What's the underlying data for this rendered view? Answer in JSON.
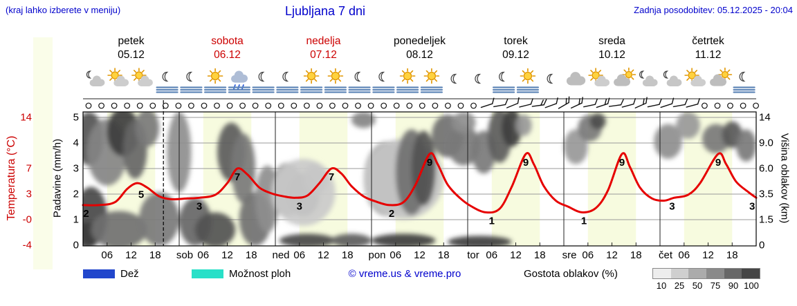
{
  "header": {
    "note": "(kraj lahko izberete v meniju)",
    "title": "Ljubljana 7 dni",
    "updated": "Zadnja posodobitev: 05.12.2025 - 20:04"
  },
  "days": [
    {
      "name": "petek",
      "date": "05.12",
      "color": "#000000"
    },
    {
      "name": "sobota",
      "date": "06.12",
      "color": "#cc0000"
    },
    {
      "name": "nedelja",
      "date": "07.12",
      "color": "#cc0000"
    },
    {
      "name": "ponedeljek",
      "date": "08.12",
      "color": "#000000"
    },
    {
      "name": "torek",
      "date": "09.12",
      "color": "#000000"
    },
    {
      "name": "sreda",
      "date": "10.12",
      "color": "#000000"
    },
    {
      "name": "četrtek",
      "date": "11.12",
      "color": "#000000"
    }
  ],
  "axes": {
    "temp_label": "Temperatura (°C)",
    "temp_ticks": [
      "14",
      "7",
      "3",
      "-0",
      "-4"
    ],
    "precip_label": "Padavine (mm/h)",
    "precip_ticks": [
      "5",
      "4",
      "3",
      "2",
      "1",
      "0"
    ],
    "cloud_label": "Višina oblakov (km)",
    "cloud_ticks": [
      "14",
      "9.0",
      "6.0",
      "3.5",
      "1.5",
      "0"
    ],
    "x_hour_labels": [
      "06",
      "12",
      "18"
    ],
    "x_day_labels": [
      "sob",
      "ned",
      "pon",
      "tor",
      "sre",
      "čet"
    ]
  },
  "legend": {
    "rain": "Dež",
    "showers": "Možnost ploh",
    "credit": "© vreme.us & vreme.pro",
    "cloud_density": "Gostota oblakov (%)",
    "density_ticks": [
      "10",
      "25",
      "50",
      "75",
      "90",
      "100"
    ],
    "density_colors": [
      "#ededed",
      "#cfcfcf",
      "#ababab",
      "#8a8a8a",
      "#676767",
      "#454545"
    ],
    "rain_color": "#2247cc",
    "showers_color": "#28e0c8"
  },
  "chart_data": {
    "type": "line",
    "title": "Ljubljana 7 dni",
    "x_unit": "hours from 05.12 00:00, 7 days total (0–168)",
    "ylabel_left": "Temperatura (°C) / Padavine (mm/h)",
    "ylabel_right": "Višina oblakov (km)",
    "ylim_temp": [
      -4,
      14
    ],
    "now_h": 20.07,
    "colors": {
      "band": "#f7fbdf",
      "curve": "#e60000"
    },
    "temperature": [
      [
        0,
        2
      ],
      [
        4,
        2
      ],
      [
        8,
        2.4
      ],
      [
        11,
        4.2
      ],
      [
        13.5,
        5
      ],
      [
        16,
        4.4
      ],
      [
        19,
        3.2
      ],
      [
        22,
        2.8
      ],
      [
        26,
        2.9
      ],
      [
        29,
        3
      ],
      [
        33,
        3.4
      ],
      [
        36,
        5
      ],
      [
        38.5,
        7
      ],
      [
        41,
        6.2
      ],
      [
        44,
        4.4
      ],
      [
        47,
        3.6
      ],
      [
        50,
        3.2
      ],
      [
        53,
        3
      ],
      [
        56,
        3.3
      ],
      [
        59,
        5
      ],
      [
        62,
        7
      ],
      [
        64.5,
        6.3
      ],
      [
        67,
        4.6
      ],
      [
        70,
        3.2
      ],
      [
        73,
        2.5
      ],
      [
        76.5,
        2
      ],
      [
        80,
        2.4
      ],
      [
        83,
        4.8
      ],
      [
        86.5,
        9
      ],
      [
        88.5,
        7.6
      ],
      [
        91,
        4.8
      ],
      [
        94,
        3
      ],
      [
        97,
        1.8
      ],
      [
        100.5,
        1
      ],
      [
        104,
        1.5
      ],
      [
        107,
        4.5
      ],
      [
        110.5,
        9
      ],
      [
        112.5,
        7.6
      ],
      [
        115,
        4.6
      ],
      [
        118,
        2.6
      ],
      [
        121,
        1.8
      ],
      [
        124.5,
        1
      ],
      [
        128,
        1.6
      ],
      [
        131,
        4
      ],
      [
        134.5,
        9
      ],
      [
        136.5,
        7.2
      ],
      [
        139,
        4.4
      ],
      [
        142,
        2.9
      ],
      [
        145,
        2.6
      ],
      [
        147.5,
        3
      ],
      [
        151,
        3.4
      ],
      [
        154,
        5
      ],
      [
        158.5,
        9
      ],
      [
        160.5,
        7.6
      ],
      [
        163,
        5.2
      ],
      [
        166,
        3.8
      ],
      [
        168,
        3
      ]
    ],
    "temp_labels": [
      [
        0.8,
        2,
        "2"
      ],
      [
        14.5,
        4.6,
        "5"
      ],
      [
        29,
        3,
        "3"
      ],
      [
        38.5,
        7,
        "7"
      ],
      [
        54,
        3,
        "3"
      ],
      [
        62,
        7,
        "7"
      ],
      [
        77,
        2,
        "2"
      ],
      [
        86.5,
        9,
        "9"
      ],
      [
        102,
        1,
        "1"
      ],
      [
        110.5,
        9,
        "9"
      ],
      [
        125,
        1,
        "1"
      ],
      [
        134.5,
        9,
        "9"
      ],
      [
        147,
        3,
        "3"
      ],
      [
        158.5,
        9,
        "9"
      ],
      [
        167,
        3,
        "3"
      ]
    ],
    "clouds": [
      {
        "h": 1.5,
        "f": 0.2,
        "rh": 3.5,
        "rf": 0.2,
        "d": 0.75
      },
      {
        "h": 6,
        "f": 0.3,
        "rh": 5,
        "rf": 0.25,
        "d": 0.5
      },
      {
        "h": 10,
        "f": 0.15,
        "rh": 4,
        "rf": 0.18,
        "d": 0.85
      },
      {
        "h": 13,
        "f": 0.28,
        "rh": 3,
        "rf": 0.22,
        "d": 0.65
      },
      {
        "h": 16,
        "f": 0.12,
        "rh": 3,
        "rf": 0.14,
        "d": 0.55
      },
      {
        "h": 2,
        "f": 0.78,
        "rh": 4,
        "rf": 0.22,
        "d": 0.8
      },
      {
        "h": 1,
        "f": 0.92,
        "rh": 3,
        "rf": 0.1,
        "d": 0.85
      },
      {
        "h": 9,
        "f": 0.88,
        "rh": 7,
        "rf": 0.14,
        "d": 0.6
      },
      {
        "h": 19,
        "f": 0.8,
        "rh": 5,
        "rf": 0.2,
        "d": 0.55
      },
      {
        "h": 24,
        "f": 0.3,
        "rh": 3,
        "rf": 0.3,
        "d": 0.45
      },
      {
        "h": 28,
        "f": 0.82,
        "rh": 4,
        "rf": 0.18,
        "d": 0.65
      },
      {
        "h": 33,
        "f": 0.88,
        "rh": 5,
        "rf": 0.13,
        "d": 0.75
      },
      {
        "h": 37,
        "f": 0.3,
        "rh": 3.5,
        "rf": 0.22,
        "d": 0.7
      },
      {
        "h": 40,
        "f": 0.42,
        "rh": 3,
        "rf": 0.26,
        "d": 0.55
      },
      {
        "h": 43,
        "f": 0.8,
        "rh": 4,
        "rf": 0.2,
        "d": 0.6
      },
      {
        "h": 46,
        "f": 0.65,
        "rh": 3,
        "rf": 0.25,
        "d": 0.45
      },
      {
        "h": 51,
        "f": 0.58,
        "rh": 4,
        "rf": 0.2,
        "d": 0.45
      },
      {
        "h": 55,
        "f": 0.62,
        "rh": 4,
        "rf": 0.16,
        "d": 0.6
      },
      {
        "h": 58,
        "f": 0.5,
        "rh": 3,
        "rf": 0.12,
        "d": 0.35
      },
      {
        "h": 55,
        "f": 0.6,
        "rh": 8,
        "rf": 0.25,
        "d": 0.15
      },
      {
        "h": 56,
        "f": 0.96,
        "rh": 7,
        "rf": 0.05,
        "d": 0.8
      },
      {
        "h": 67,
        "f": 0.96,
        "rh": 5,
        "rf": 0.05,
        "d": 0.7
      },
      {
        "h": 70,
        "f": 0.06,
        "rh": 3,
        "rf": 0.06,
        "d": 0.5
      },
      {
        "h": 76,
        "f": 0.5,
        "rh": 6,
        "rf": 0.28,
        "d": 0.35
      },
      {
        "h": 80,
        "f": 0.5,
        "rh": 10,
        "rf": 0.3,
        "d": 0.18
      },
      {
        "h": 82,
        "f": 0.45,
        "rh": 4,
        "rf": 0.32,
        "d": 0.6
      },
      {
        "h": 85,
        "f": 0.42,
        "rh": 3,
        "rf": 0.28,
        "d": 0.75
      },
      {
        "h": 80,
        "f": 0.96,
        "rh": 8,
        "rf": 0.05,
        "d": 0.85
      },
      {
        "h": 91,
        "f": 0.18,
        "rh": 4,
        "rf": 0.16,
        "d": 0.6
      },
      {
        "h": 95,
        "f": 0.25,
        "rh": 4,
        "rf": 0.15,
        "d": 0.55
      },
      {
        "h": 95,
        "f": 0.08,
        "rh": 3,
        "rf": 0.08,
        "d": 0.45
      },
      {
        "h": 100,
        "f": 0.3,
        "rh": 3,
        "rf": 0.16,
        "d": 0.55
      },
      {
        "h": 104,
        "f": 0.18,
        "rh": 3,
        "rf": 0.2,
        "d": 0.7
      },
      {
        "h": 107,
        "f": 0.12,
        "rh": 2.5,
        "rf": 0.14,
        "d": 0.85
      },
      {
        "h": 99,
        "f": 0.97,
        "rh": 8,
        "rf": 0.045,
        "d": 0.85
      },
      {
        "h": 110,
        "f": 0.1,
        "rh": 2,
        "rf": 0.08,
        "d": 0.4
      },
      {
        "h": 123,
        "f": 0.26,
        "rh": 3,
        "rf": 0.13,
        "d": 0.4
      },
      {
        "h": 126.5,
        "f": 0.12,
        "rh": 3,
        "rf": 0.1,
        "d": 0.55
      },
      {
        "h": 128.5,
        "f": 0.07,
        "rh": 2,
        "rf": 0.06,
        "d": 0.78
      },
      {
        "h": 146,
        "f": 0.22,
        "rh": 3.5,
        "rf": 0.13,
        "d": 0.45
      },
      {
        "h": 151,
        "f": 0.1,
        "rh": 3,
        "rf": 0.1,
        "d": 0.4
      },
      {
        "h": 158,
        "f": 0.2,
        "rh": 3.5,
        "rf": 0.11,
        "d": 0.55
      },
      {
        "h": 162,
        "f": 0.17,
        "rh": 2.5,
        "rf": 0.1,
        "d": 0.72
      },
      {
        "h": 165.5,
        "f": 0.25,
        "rh": 2.5,
        "rf": 0.12,
        "d": 0.55
      }
    ]
  },
  "icons": [
    {
      "t": "cloud-moon",
      "fog": false
    },
    {
      "t": "sun-cloud",
      "fog": false
    },
    {
      "t": "sun-cloud",
      "fog": false
    },
    {
      "t": "moon",
      "fog": true
    },
    {
      "t": "moon",
      "fog": true
    },
    {
      "t": "sun",
      "fog": true
    },
    {
      "t": "rain-cloud",
      "fog": true
    },
    {
      "t": "moon",
      "fog": true
    },
    {
      "t": "moon",
      "fog": true
    },
    {
      "t": "sun",
      "fog": true
    },
    {
      "t": "sun",
      "fog": true
    },
    {
      "t": "moon",
      "fog": true
    },
    {
      "t": "moon",
      "fog": true
    },
    {
      "t": "sun",
      "fog": true
    },
    {
      "t": "sun",
      "fog": true
    },
    {
      "t": "moon",
      "fog": false
    },
    {
      "t": "moon",
      "fog": false
    },
    {
      "t": "moon",
      "fog": true
    },
    {
      "t": "sun",
      "fog": true
    },
    {
      "t": "moon",
      "fog": false
    },
    {
      "t": "cloud",
      "fog": false
    },
    {
      "t": "sun-cloud",
      "fog": false
    },
    {
      "t": "cloud-sun",
      "fog": false
    },
    {
      "t": "cloud-moon",
      "fog": false
    },
    {
      "t": "cloud-moon",
      "fog": false
    },
    {
      "t": "sun-cloud",
      "fog": false
    },
    {
      "t": "cloud-sun",
      "fog": false
    },
    {
      "t": "moon",
      "fog": true
    }
  ],
  "wind": [
    "c",
    "c",
    "c",
    "c",
    "c",
    "c",
    "c",
    "c",
    "c",
    "c",
    "c",
    "c",
    "c",
    "c",
    "c",
    "c",
    "c",
    "c",
    "c",
    "c",
    "c",
    "c",
    "c",
    "c",
    "c",
    "c",
    "c",
    "c",
    "c",
    "c",
    "c",
    {
      "a": -18,
      "k": 1
    },
    {
      "a": -10,
      "k": 1
    },
    {
      "a": -22,
      "k": 1
    },
    {
      "a": -14,
      "k": 1
    },
    {
      "a": -8,
      "k": 2
    },
    {
      "a": -20,
      "k": 1
    },
    {
      "a": -30,
      "k": 2
    },
    {
      "a": -25,
      "k": 2
    },
    {
      "a": -12,
      "k": 1
    },
    {
      "a": -18,
      "k": 2
    },
    {
      "a": -8,
      "k": 1
    },
    {
      "a": -15,
      "k": 1
    },
    {
      "a": -24,
      "k": 2
    },
    {
      "a": -12,
      "k": 1
    },
    {
      "a": -18,
      "k": 1
    },
    {
      "a": -10,
      "k": 1
    },
    {
      "a": -15,
      "k": 1
    },
    "c",
    "c",
    "c",
    "c",
    "c"
  ]
}
